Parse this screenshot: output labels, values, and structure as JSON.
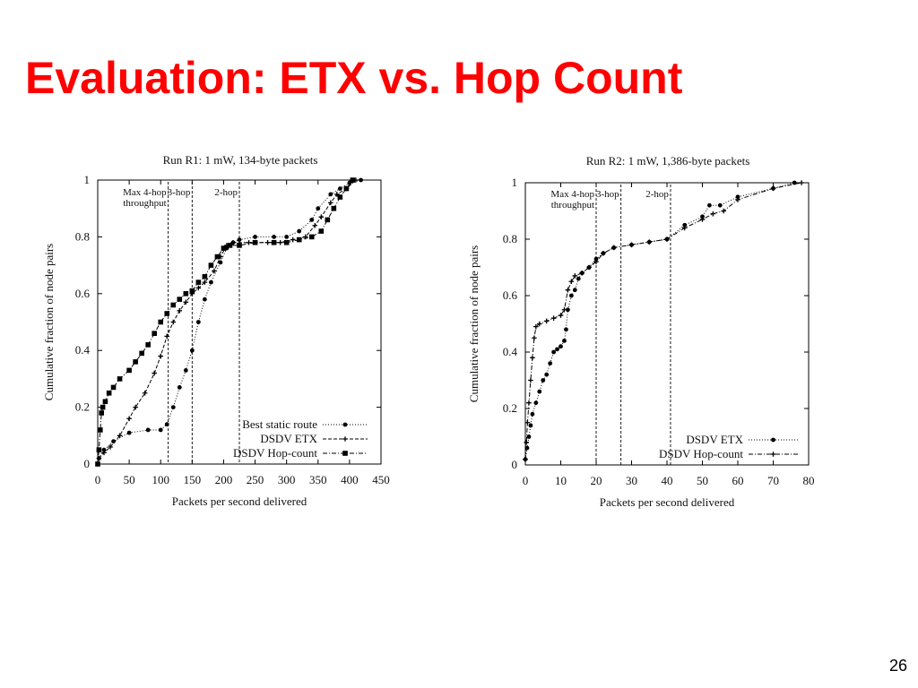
{
  "slide": {
    "title": "Evaluation: ETX vs. Hop Count",
    "page_number": "26",
    "title_color": "#ff0000"
  },
  "chart_data": [
    {
      "type": "line",
      "title": "Run R1: 1 mW, 134-byte packets",
      "xlabel": "Packets per second delivered",
      "ylabel": "Cumulative fraction of node pairs",
      "xlim": [
        0,
        450
      ],
      "ylim": [
        0,
        1
      ],
      "xticks": [
        0,
        50,
        100,
        150,
        200,
        250,
        300,
        350,
        400,
        450
      ],
      "yticks": [
        0,
        0.2,
        0.4,
        0.6,
        0.8,
        1
      ],
      "ytick_labels": [
        "0",
        "0.2",
        "0.4",
        "0.6",
        "0.8",
        "1"
      ],
      "legend_position": "bottom-right",
      "grid": false,
      "vlines": [
        {
          "x": 112,
          "label": "Max 4-hop\nthroughput"
        },
        {
          "x": 150,
          "label": "3-hop"
        },
        {
          "x": 225,
          "label": "2-hop"
        }
      ],
      "series": [
        {
          "name": "Best static route",
          "marker": "dot",
          "dash": "1,2",
          "points": [
            [
              2,
              0.02
            ],
            [
              10,
              0.05
            ],
            [
              25,
              0.08
            ],
            [
              50,
              0.11
            ],
            [
              80,
              0.12
            ],
            [
              100,
              0.12
            ],
            [
              110,
              0.14
            ],
            [
              120,
              0.2
            ],
            [
              130,
              0.27
            ],
            [
              140,
              0.33
            ],
            [
              150,
              0.4
            ],
            [
              160,
              0.5
            ],
            [
              170,
              0.58
            ],
            [
              180,
              0.64
            ],
            [
              195,
              0.71
            ],
            [
              205,
              0.76
            ],
            [
              215,
              0.78
            ],
            [
              225,
              0.79
            ],
            [
              250,
              0.8
            ],
            [
              280,
              0.8
            ],
            [
              300,
              0.8
            ],
            [
              320,
              0.82
            ],
            [
              340,
              0.86
            ],
            [
              350,
              0.9
            ],
            [
              370,
              0.95
            ],
            [
              385,
              0.97
            ],
            [
              400,
              0.99
            ],
            [
              418,
              1.0
            ]
          ]
        },
        {
          "name": "DSDV ETX",
          "marker": "plus",
          "dash": "4,2",
          "points": [
            [
              2,
              0.02
            ],
            [
              10,
              0.04
            ],
            [
              20,
              0.06
            ],
            [
              35,
              0.1
            ],
            [
              50,
              0.16
            ],
            [
              60,
              0.2
            ],
            [
              75,
              0.25
            ],
            [
              90,
              0.32
            ],
            [
              100,
              0.38
            ],
            [
              110,
              0.45
            ],
            [
              120,
              0.5
            ],
            [
              130,
              0.54
            ],
            [
              140,
              0.57
            ],
            [
              150,
              0.6
            ],
            [
              160,
              0.62
            ],
            [
              170,
              0.64
            ],
            [
              185,
              0.68
            ],
            [
              195,
              0.73
            ],
            [
              205,
              0.77
            ],
            [
              215,
              0.78
            ],
            [
              240,
              0.78
            ],
            [
              270,
              0.78
            ],
            [
              290,
              0.78
            ],
            [
              310,
              0.79
            ],
            [
              330,
              0.8
            ],
            [
              345,
              0.84
            ],
            [
              355,
              0.87
            ],
            [
              370,
              0.92
            ],
            [
              380,
              0.95
            ],
            [
              395,
              0.97
            ],
            [
              410,
              1.0
            ]
          ]
        },
        {
          "name": "DSDV Hop-count",
          "marker": "square",
          "dash": "5,2,1,2",
          "points": [
            [
              0,
              0.0
            ],
            [
              2,
              0.05
            ],
            [
              4,
              0.12
            ],
            [
              6,
              0.18
            ],
            [
              8,
              0.2
            ],
            [
              12,
              0.22
            ],
            [
              18,
              0.25
            ],
            [
              25,
              0.27
            ],
            [
              35,
              0.3
            ],
            [
              50,
              0.33
            ],
            [
              60,
              0.36
            ],
            [
              70,
              0.39
            ],
            [
              80,
              0.42
            ],
            [
              90,
              0.46
            ],
            [
              100,
              0.5
            ],
            [
              110,
              0.53
            ],
            [
              120,
              0.56
            ],
            [
              130,
              0.58
            ],
            [
              140,
              0.6
            ],
            [
              150,
              0.61
            ],
            [
              160,
              0.64
            ],
            [
              170,
              0.66
            ],
            [
              180,
              0.7
            ],
            [
              190,
              0.73
            ],
            [
              200,
              0.76
            ],
            [
              210,
              0.77
            ],
            [
              225,
              0.77
            ],
            [
              250,
              0.78
            ],
            [
              280,
              0.78
            ],
            [
              300,
              0.78
            ],
            [
              320,
              0.79
            ],
            [
              340,
              0.8
            ],
            [
              355,
              0.82
            ],
            [
              365,
              0.86
            ],
            [
              375,
              0.9
            ],
            [
              385,
              0.94
            ],
            [
              395,
              0.97
            ],
            [
              405,
              1.0
            ]
          ]
        }
      ]
    },
    {
      "type": "line",
      "title": "Run R2: 1 mW, 1,386-byte packets",
      "xlabel": "Packets per second delivered",
      "ylabel": "Cumulative fraction of node pairs",
      "xlim": [
        0,
        80
      ],
      "ylim": [
        0,
        1
      ],
      "xticks": [
        0,
        10,
        20,
        30,
        40,
        50,
        60,
        70,
        80
      ],
      "yticks": [
        0,
        0.2,
        0.4,
        0.6,
        0.8,
        1
      ],
      "ytick_labels": [
        "0",
        "0.2",
        "0.4",
        "0.6",
        "0.8",
        "1"
      ],
      "legend_position": "bottom-right",
      "grid": false,
      "vlines": [
        {
          "x": 20,
          "label": "Max 4-hop\nthroughput"
        },
        {
          "x": 27,
          "label": "3-hop"
        },
        {
          "x": 41,
          "label": "2-hop"
        }
      ],
      "series": [
        {
          "name": "DSDV ETX",
          "marker": "dot",
          "dash": "1,2",
          "points": [
            [
              0,
              0.02
            ],
            [
              0.5,
              0.06
            ],
            [
              1,
              0.1
            ],
            [
              1.5,
              0.14
            ],
            [
              2,
              0.18
            ],
            [
              3,
              0.22
            ],
            [
              4,
              0.26
            ],
            [
              5,
              0.3
            ],
            [
              6,
              0.32
            ],
            [
              7,
              0.36
            ],
            [
              8,
              0.4
            ],
            [
              9,
              0.41
            ],
            [
              10,
              0.42
            ],
            [
              11,
              0.44
            ],
            [
              11.5,
              0.48
            ],
            [
              12,
              0.55
            ],
            [
              13,
              0.6
            ],
            [
              14,
              0.62
            ],
            [
              15,
              0.66
            ],
            [
              16,
              0.68
            ],
            [
              18,
              0.7
            ],
            [
              20,
              0.73
            ],
            [
              22,
              0.75
            ],
            [
              25,
              0.77
            ],
            [
              30,
              0.78
            ],
            [
              35,
              0.79
            ],
            [
              40,
              0.8
            ],
            [
              45,
              0.85
            ],
            [
              50,
              0.88
            ],
            [
              52,
              0.92
            ],
            [
              55,
              0.92
            ],
            [
              60,
              0.95
            ],
            [
              70,
              0.98
            ],
            [
              76,
              1.0
            ]
          ]
        },
        {
          "name": "DSDV Hop-count",
          "marker": "plus",
          "dash": "5,2,1,2",
          "points": [
            [
              0,
              0.02
            ],
            [
              0.3,
              0.08
            ],
            [
              0.6,
              0.15
            ],
            [
              1,
              0.22
            ],
            [
              1.5,
              0.3
            ],
            [
              2,
              0.38
            ],
            [
              2.5,
              0.45
            ],
            [
              3,
              0.49
            ],
            [
              4,
              0.5
            ],
            [
              6,
              0.51
            ],
            [
              8,
              0.52
            ],
            [
              10,
              0.53
            ],
            [
              11,
              0.55
            ],
            [
              12,
              0.62
            ],
            [
              13,
              0.65
            ],
            [
              14,
              0.67
            ],
            [
              16,
              0.68
            ],
            [
              18,
              0.7
            ],
            [
              20,
              0.72
            ],
            [
              22,
              0.75
            ],
            [
              25,
              0.77
            ],
            [
              30,
              0.78
            ],
            [
              35,
              0.79
            ],
            [
              40,
              0.8
            ],
            [
              45,
              0.84
            ],
            [
              50,
              0.87
            ],
            [
              53,
              0.89
            ],
            [
              56,
              0.9
            ],
            [
              60,
              0.94
            ],
            [
              70,
              0.98
            ],
            [
              78,
              1.0
            ]
          ]
        }
      ]
    }
  ]
}
